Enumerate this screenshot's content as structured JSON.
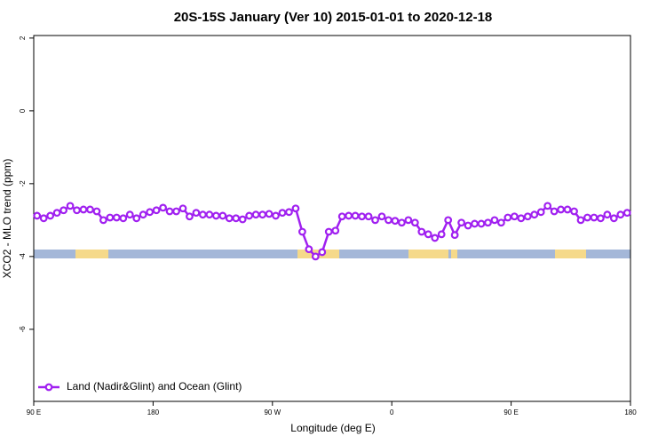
{
  "chart_data": {
    "type": "line",
    "title": "20S-15S January (Ver 10)   2015-01-01 to 2020-12-18",
    "x_label": "Longitude (deg E)",
    "y_label": "XCO2 - MLO trend (ppm)",
    "xlim": [
      90,
      540
    ],
    "ylim": [
      -7.98,
      2.07
    ],
    "xticks": [
      {
        "value": 90,
        "label": "90 E"
      },
      180,
      {
        "value": 270,
        "label": "90 W"
      },
      {
        "value": 360,
        "label": "0"
      },
      {
        "value": 450,
        "label": "90 E"
      },
      {
        "value": 540,
        "label": "180"
      }
    ],
    "yticks": [
      2,
      0,
      -2,
      -4,
      -6
    ],
    "legend": "bottom-left",
    "x": [
      92.5,
      97.5,
      102.5,
      107.5,
      112.5,
      117.5,
      122.5,
      127.5,
      132.5,
      137.5,
      142.5,
      147.5,
      152.5,
      157.5,
      162.5,
      167.5,
      172.5,
      177.5,
      182.5,
      187.5,
      192.5,
      197.5,
      202.5,
      207.5,
      212.5,
      217.5,
      222.5,
      227.5,
      232.5,
      237.5,
      242.5,
      247.5,
      252.5,
      257.5,
      262.5,
      267.5,
      272.5,
      277.5,
      282.5,
      287.5,
      292.5,
      297.5,
      302.5,
      307.5,
      312.5,
      317.5,
      322.5,
      327.5,
      332.5,
      337.5,
      342.5,
      347.5,
      352.5,
      357.5,
      362.5,
      367.5,
      372.5,
      377.5,
      382.5,
      387.5,
      392.5,
      397.5,
      402.5,
      407.5,
      412.5,
      417.5,
      422.5,
      427.5,
      432.5,
      437.5,
      442.5,
      447.5,
      452.5,
      457.5,
      462.5,
      467.5,
      472.5,
      477.5,
      482.5,
      487.5,
      492.5,
      497.5,
      502.5,
      507.5,
      512.5,
      517.5,
      522.5,
      527.5,
      532.5,
      537.5
    ],
    "series": [
      {
        "name": "Land (Nadir&Glint) and Ocean (Glint)",
        "color": "#a020f0",
        "values": [
          -2.88,
          -2.95,
          -2.88,
          -2.8,
          -2.73,
          -2.61,
          -2.73,
          -2.71,
          -2.71,
          -2.76,
          -3.0,
          -2.93,
          -2.93,
          -2.95,
          -2.85,
          -2.95,
          -2.85,
          -2.78,
          -2.73,
          -2.66,
          -2.76,
          -2.76,
          -2.68,
          -2.9,
          -2.8,
          -2.85,
          -2.85,
          -2.88,
          -2.88,
          -2.95,
          -2.95,
          -2.98,
          -2.88,
          -2.85,
          -2.85,
          -2.83,
          -2.88,
          -2.8,
          -2.78,
          -2.68,
          -3.32,
          -3.8,
          -4.0,
          -3.88,
          -3.32,
          -3.29,
          -2.9,
          -2.88,
          -2.88,
          -2.9,
          -2.9,
          -3.0,
          -2.9,
          -3.0,
          -3.02,
          -3.07,
          -3.0,
          -3.07,
          -3.32,
          -3.39,
          -3.49,
          -3.39,
          -3.0,
          -3.41,
          -3.07,
          -3.15,
          -3.1,
          -3.1,
          -3.07,
          -3.0,
          -3.07,
          -2.93,
          -2.9,
          -2.95,
          -2.9,
          -2.85,
          -2.78,
          -2.61,
          -2.76,
          -2.71,
          -2.71,
          -2.76,
          -3.0,
          -2.93,
          -2.93,
          -2.95,
          -2.85,
          -2.95,
          -2.85,
          -2.8
        ]
      }
    ]
  }
}
